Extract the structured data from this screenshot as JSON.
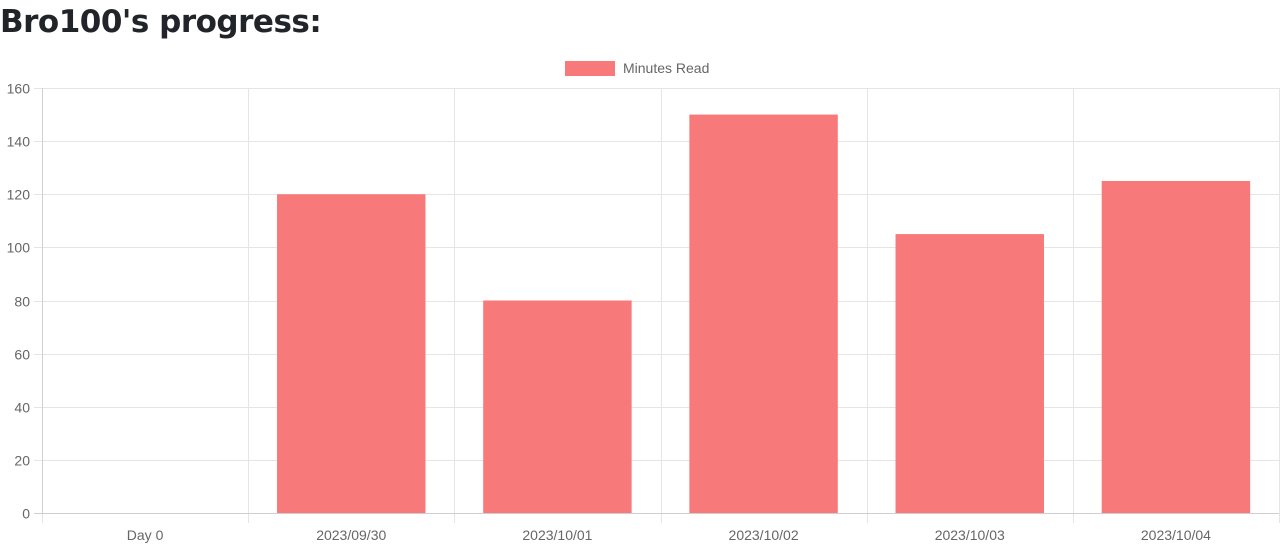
{
  "page": {
    "title": "Bro100's progress:"
  },
  "chart_data": {
    "type": "bar",
    "title": "",
    "xlabel": "",
    "ylabel": "",
    "categories": [
      "Day 0",
      "2023/09/30",
      "2023/10/01",
      "2023/10/02",
      "2023/10/03",
      "2023/10/04"
    ],
    "series": [
      {
        "name": "Minutes Read",
        "values": [
          0,
          120,
          80,
          150,
          105,
          125
        ],
        "color": "#f87979"
      }
    ],
    "ylim": [
      0,
      160
    ],
    "yticks": [
      0,
      20,
      40,
      60,
      80,
      100,
      120,
      140,
      160
    ],
    "grid": true,
    "legend_position": "top-center"
  }
}
